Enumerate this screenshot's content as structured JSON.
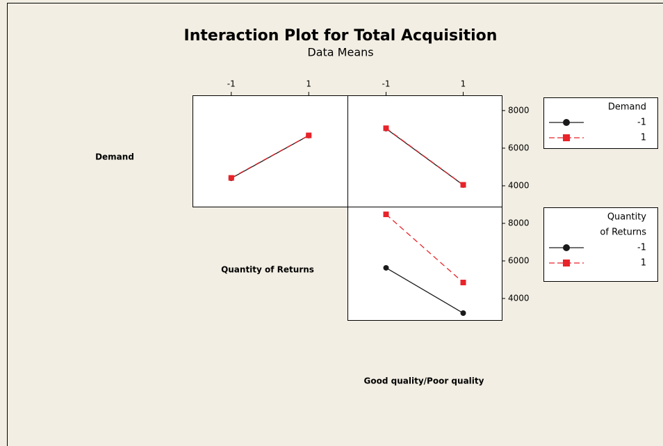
{
  "chart_data": {
    "type": "interaction",
    "title": "Interaction Plot for Total Acquisition",
    "subtitle": "Data Means",
    "row_labels": [
      "Demand",
      "Quantity of Returns"
    ],
    "column_label": "Good quality/Poor quality",
    "panels": [
      {
        "xlim": [
          -2,
          2
        ],
        "xticks": [
          -1,
          1
        ],
        "ylim": [
          2890,
          8810
        ],
        "legend_title": [
          "Demand"
        ],
        "series": [
          {
            "name": "-1",
            "color": "#1a1a1a",
            "line_style": "solid",
            "marker": "circle",
            "x": [
              -1,
              1
            ],
            "values": [
              4400,
              6670
            ]
          },
          {
            "name": "1",
            "color": "#e8232a",
            "line_style": "dashed",
            "marker": "square",
            "x": [
              -1,
              1
            ],
            "values": [
              4420,
              6680
            ]
          }
        ]
      },
      {
        "xlim": [
          -2,
          2
        ],
        "xticks": [
          -1,
          1
        ],
        "ylim": [
          2890,
          8810
        ],
        "yticks": [
          4000,
          6000,
          8000
        ],
        "series": [
          {
            "name": "-1",
            "color": "#1a1a1a",
            "line_style": "solid",
            "marker": "circle",
            "x": [
              -1,
              1
            ],
            "values": [
              7040,
              4040
            ]
          },
          {
            "name": "1",
            "color": "#e8232a",
            "line_style": "dashed",
            "marker": "square",
            "x": [
              -1,
              1
            ],
            "values": [
              7060,
              4050
            ]
          }
        ]
      },
      {
        "xlim": [
          -2,
          2
        ],
        "ylim": [
          2850,
          8890
        ],
        "yticks": [
          4000,
          6000,
          8000
        ],
        "legend_title": [
          "Quantity",
          "of Returns"
        ],
        "series": [
          {
            "name": "-1",
            "color": "#1a1a1a",
            "line_style": "solid",
            "marker": "circle",
            "x": [
              -1,
              1
            ],
            "values": [
              5630,
              3220
            ]
          },
          {
            "name": "1",
            "color": "#e8232a",
            "line_style": "dashed",
            "marker": "square",
            "x": [
              -1,
              1
            ],
            "values": [
              8480,
              4850
            ]
          }
        ]
      }
    ]
  }
}
